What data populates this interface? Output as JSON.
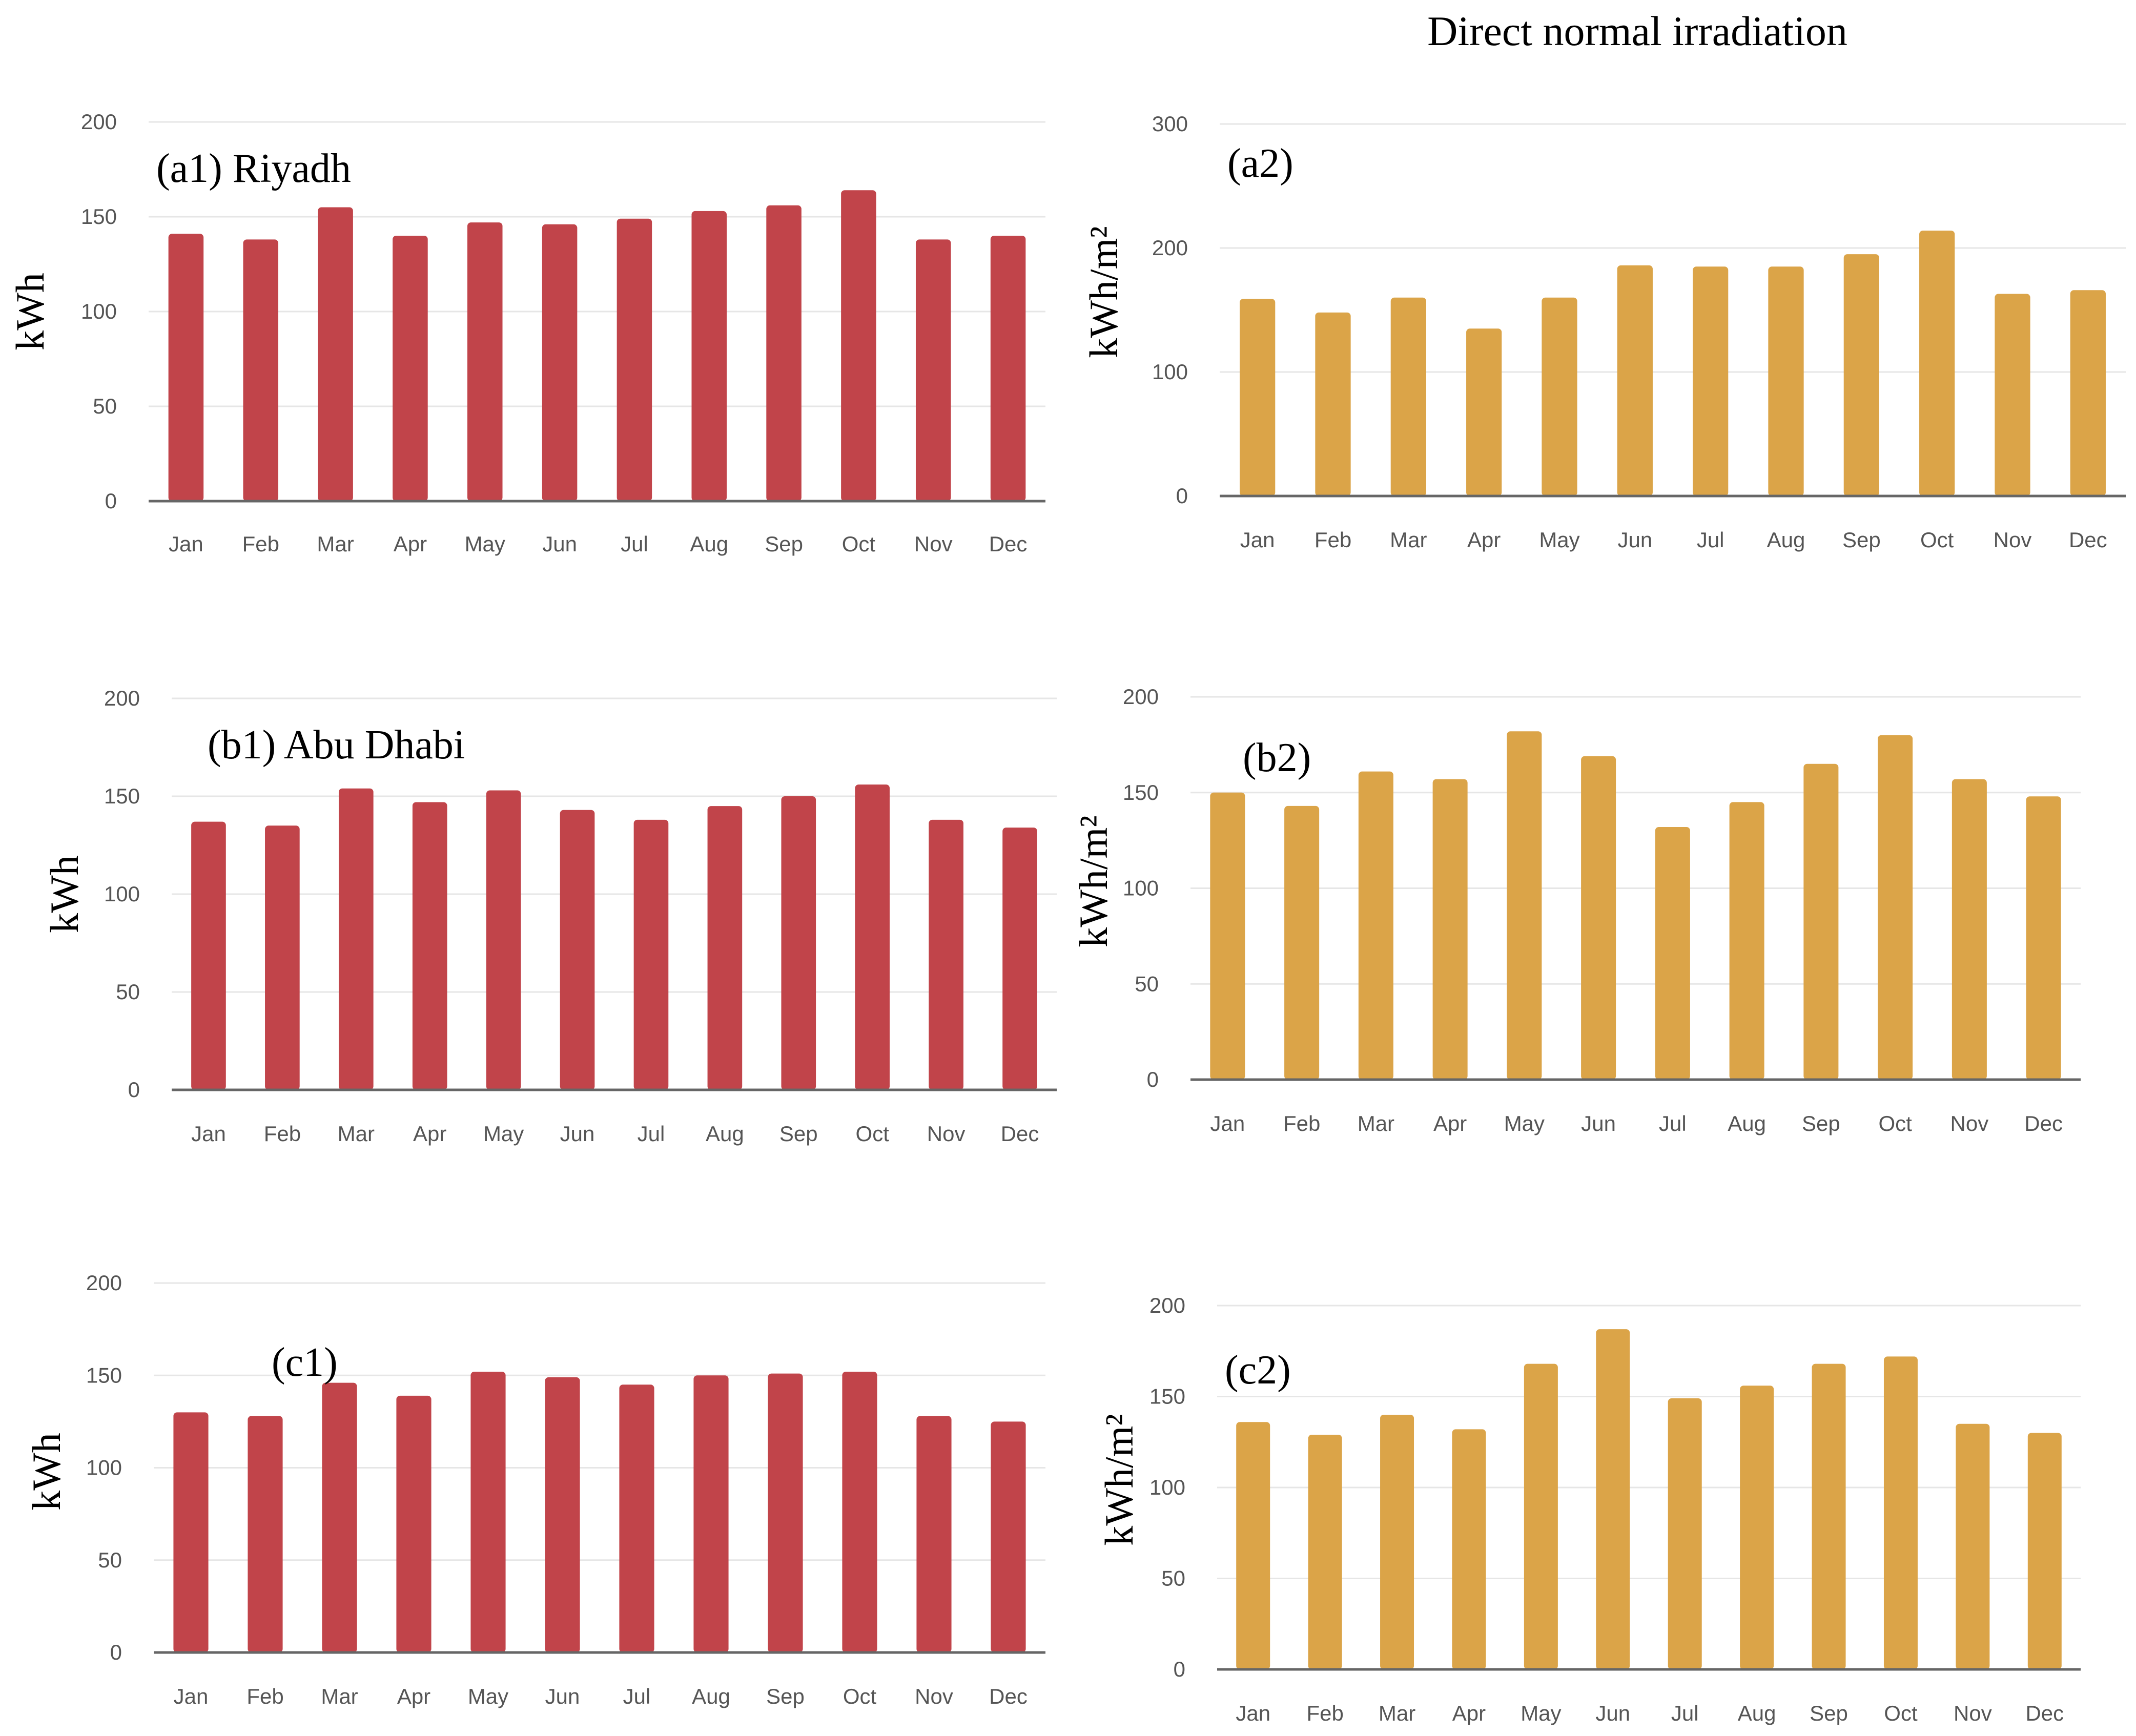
{
  "figure": {
    "title": "Direct normal irradiation",
    "colors": {
      "energy": "#c1444a",
      "irradiation": "#dba448"
    }
  },
  "chart_data": [
    {
      "id": "a1",
      "type": "bar",
      "panel_label": "(a1) Riyadh",
      "ylabel": "kWh",
      "categories": [
        "Jan",
        "Feb",
        "Mar",
        "Apr",
        "May",
        "Jun",
        "Jul",
        "Aug",
        "Sep",
        "Oct",
        "Nov",
        "Dec"
      ],
      "values": [
        141,
        138,
        155,
        140,
        147,
        146,
        149,
        153,
        156,
        164,
        138,
        140
      ],
      "ylim": [
        0,
        200
      ],
      "yticks": [
        0,
        50,
        100,
        150,
        200
      ],
      "color": "#c1444a",
      "grid": true
    },
    {
      "id": "a2",
      "type": "bar",
      "panel_label": "(a2)",
      "ylabel": "kWh/m²",
      "categories": [
        "Jan",
        "Feb",
        "Mar",
        "Apr",
        "May",
        "Jun",
        "Jul",
        "Aug",
        "Sep",
        "Oct",
        "Nov",
        "Dec"
      ],
      "values": [
        159,
        148,
        160,
        135,
        160,
        186,
        185,
        185,
        195,
        214,
        163,
        166
      ],
      "ylim": [
        0,
        300
      ],
      "yticks": [
        0,
        100,
        200,
        300
      ],
      "color": "#dba448",
      "grid": true
    },
    {
      "id": "b1",
      "type": "bar",
      "panel_label": "(b1) Abu Dhabi",
      "ylabel": "kWh",
      "categories": [
        "Jan",
        "Feb",
        "Mar",
        "Apr",
        "May",
        "Jun",
        "Jul",
        "Aug",
        "Sep",
        "Oct",
        "Nov",
        "Dec"
      ],
      "values": [
        137,
        135,
        154,
        147,
        153,
        143,
        138,
        145,
        150,
        156,
        138,
        134
      ],
      "ylim": [
        0,
        200
      ],
      "yticks": [
        0,
        50,
        100,
        150,
        200
      ],
      "color": "#c1444a",
      "grid": true
    },
    {
      "id": "b2",
      "type": "bar",
      "panel_label": "(b2)",
      "ylabel": "kWh/m²",
      "categories": [
        "Jan",
        "Feb",
        "Mar",
        "Apr",
        "May",
        "Jun",
        "Jul",
        "Aug",
        "Sep",
        "Oct",
        "Nov",
        "Dec"
      ],
      "values": [
        150,
        143,
        161,
        157,
        182,
        169,
        132,
        145,
        165,
        180,
        157,
        148
      ],
      "ylim": [
        0,
        200
      ],
      "yticks": [
        0,
        50,
        100,
        150,
        200
      ],
      "color": "#dba448",
      "grid": true
    },
    {
      "id": "c1",
      "type": "bar",
      "panel_label": "(c1)",
      "ylabel": "kWh",
      "categories": [
        "Jan",
        "Feb",
        "Mar",
        "Apr",
        "May",
        "Jun",
        "Jul",
        "Aug",
        "Sep",
        "Oct",
        "Nov",
        "Dec"
      ],
      "values": [
        130,
        128,
        146,
        139,
        152,
        149,
        145,
        150,
        151,
        152,
        128,
        125
      ],
      "ylim": [
        0,
        200
      ],
      "yticks": [
        0,
        50,
        100,
        150,
        200
      ],
      "color": "#c1444a",
      "grid": true
    },
    {
      "id": "c2",
      "type": "bar",
      "panel_label": "(c2)",
      "ylabel": "kWh/m²",
      "categories": [
        "Jan",
        "Feb",
        "Mar",
        "Apr",
        "May",
        "Jun",
        "Jul",
        "Aug",
        "Sep",
        "Oct",
        "Nov",
        "Dec"
      ],
      "values": [
        136,
        129,
        140,
        132,
        168,
        187,
        149,
        156,
        168,
        172,
        135,
        130
      ],
      "ylim": [
        0,
        200
      ],
      "yticks": [
        0,
        50,
        100,
        150,
        200
      ],
      "color": "#dba448",
      "grid": true
    }
  ]
}
